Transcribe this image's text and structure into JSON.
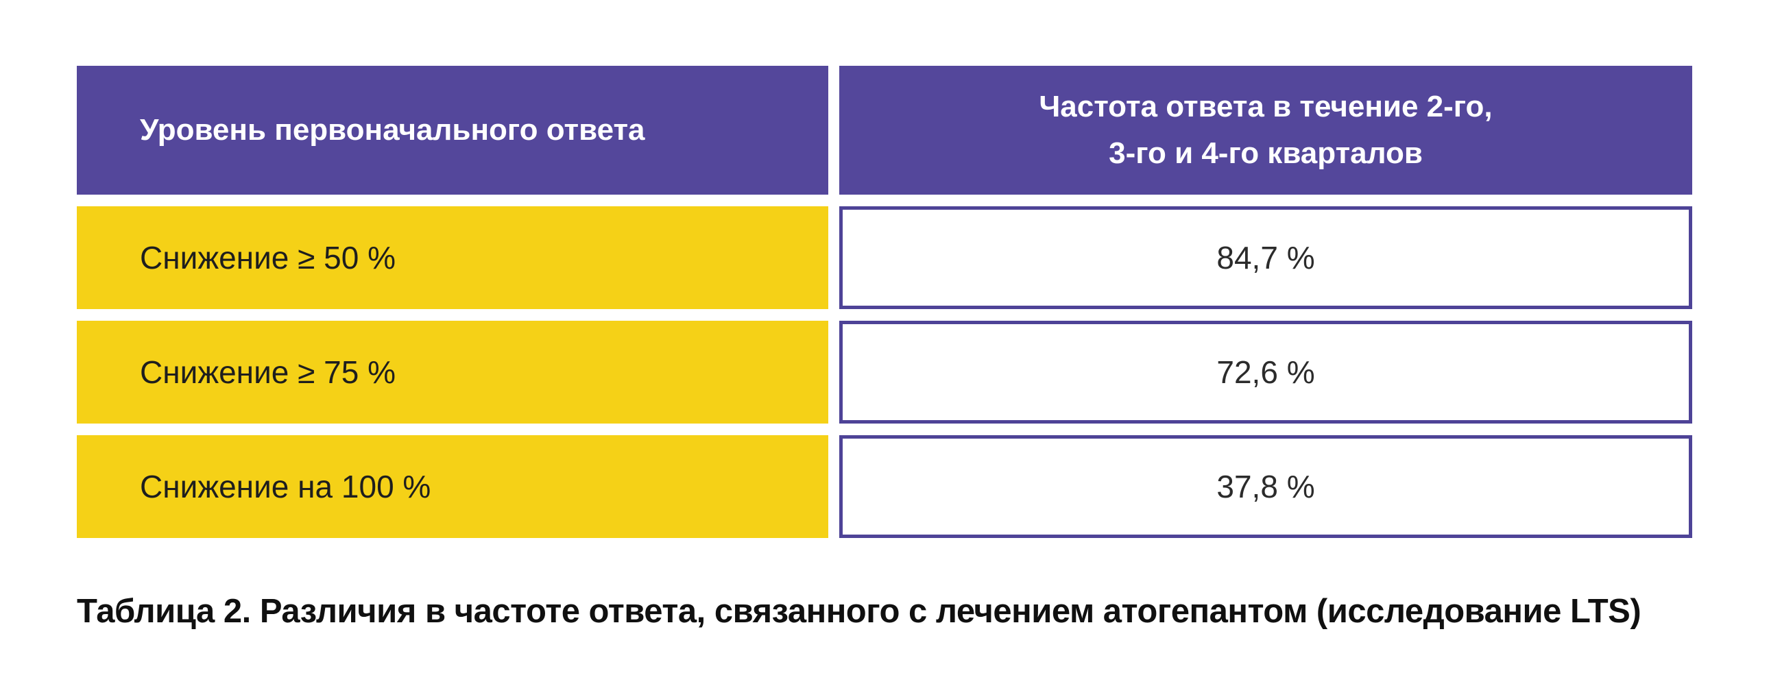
{
  "table": {
    "header": {
      "col1": "Уровень первоначального ответа",
      "col2": "Частота ответа в течение 2-го,\n3-го и 4-го кварталов"
    },
    "rows": [
      {
        "label": "Снижение ≥ 50 %",
        "value": "84,7 %"
      },
      {
        "label": "Снижение ≥ 75 %",
        "value": "72,6 %"
      },
      {
        "label": "Снижение на 100 %",
        "value": "37,8 %"
      }
    ]
  },
  "caption": "Таблица 2. Различия в частоте ответа, связанного с лечением атогепантом (исследование LTS)",
  "colors": {
    "header_purple": "#54479b",
    "border_purple": "#4e4397",
    "row_yellow": "#f5d117",
    "background": "#ffffff",
    "header_text": "#ffffff",
    "body_text": "#1e1e1e"
  },
  "chart_data": {
    "type": "table",
    "columns": [
      "Уровень первоначального ответа",
      "Частота ответа в течение 2-го, 3-го и 4-го кварталов"
    ],
    "categories": [
      "Снижение ≥ 50 %",
      "Снижение ≥ 75 %",
      "Снижение на 100 %"
    ],
    "values": [
      84.7,
      72.6,
      37.8
    ],
    "value_unit": "%",
    "title": "Таблица 2. Различия в частоте ответа, связанного с лечением атогепантом (исследование LTS)"
  }
}
